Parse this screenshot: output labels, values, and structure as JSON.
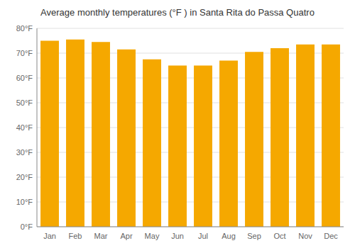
{
  "chart_data": {
    "type": "bar",
    "title": "Average monthly temperatures (°F ) in Santa Rita do Passa Quatro",
    "categories": [
      "Jan",
      "Feb",
      "Mar",
      "Apr",
      "May",
      "Jun",
      "Jul",
      "Aug",
      "Sep",
      "Oct",
      "Nov",
      "Dec"
    ],
    "values": [
      75,
      75.5,
      74.5,
      71.5,
      67.5,
      65,
      65,
      67,
      70.5,
      72,
      73.5,
      73.5
    ],
    "color": "#F5A800",
    "ylim": [
      0,
      80
    ],
    "yticks": [
      {
        "value": 0,
        "label": "0°F"
      },
      {
        "value": 10,
        "label": "10°F"
      },
      {
        "value": 20,
        "label": "20°F"
      },
      {
        "value": 30,
        "label": "30°F"
      },
      {
        "value": 40,
        "label": "40°F"
      },
      {
        "value": 50,
        "label": "50°F"
      },
      {
        "value": 60,
        "label": "60°F"
      },
      {
        "value": 70,
        "label": "70°F"
      },
      {
        "value": 80,
        "label": "80°F"
      }
    ],
    "grid": true
  }
}
